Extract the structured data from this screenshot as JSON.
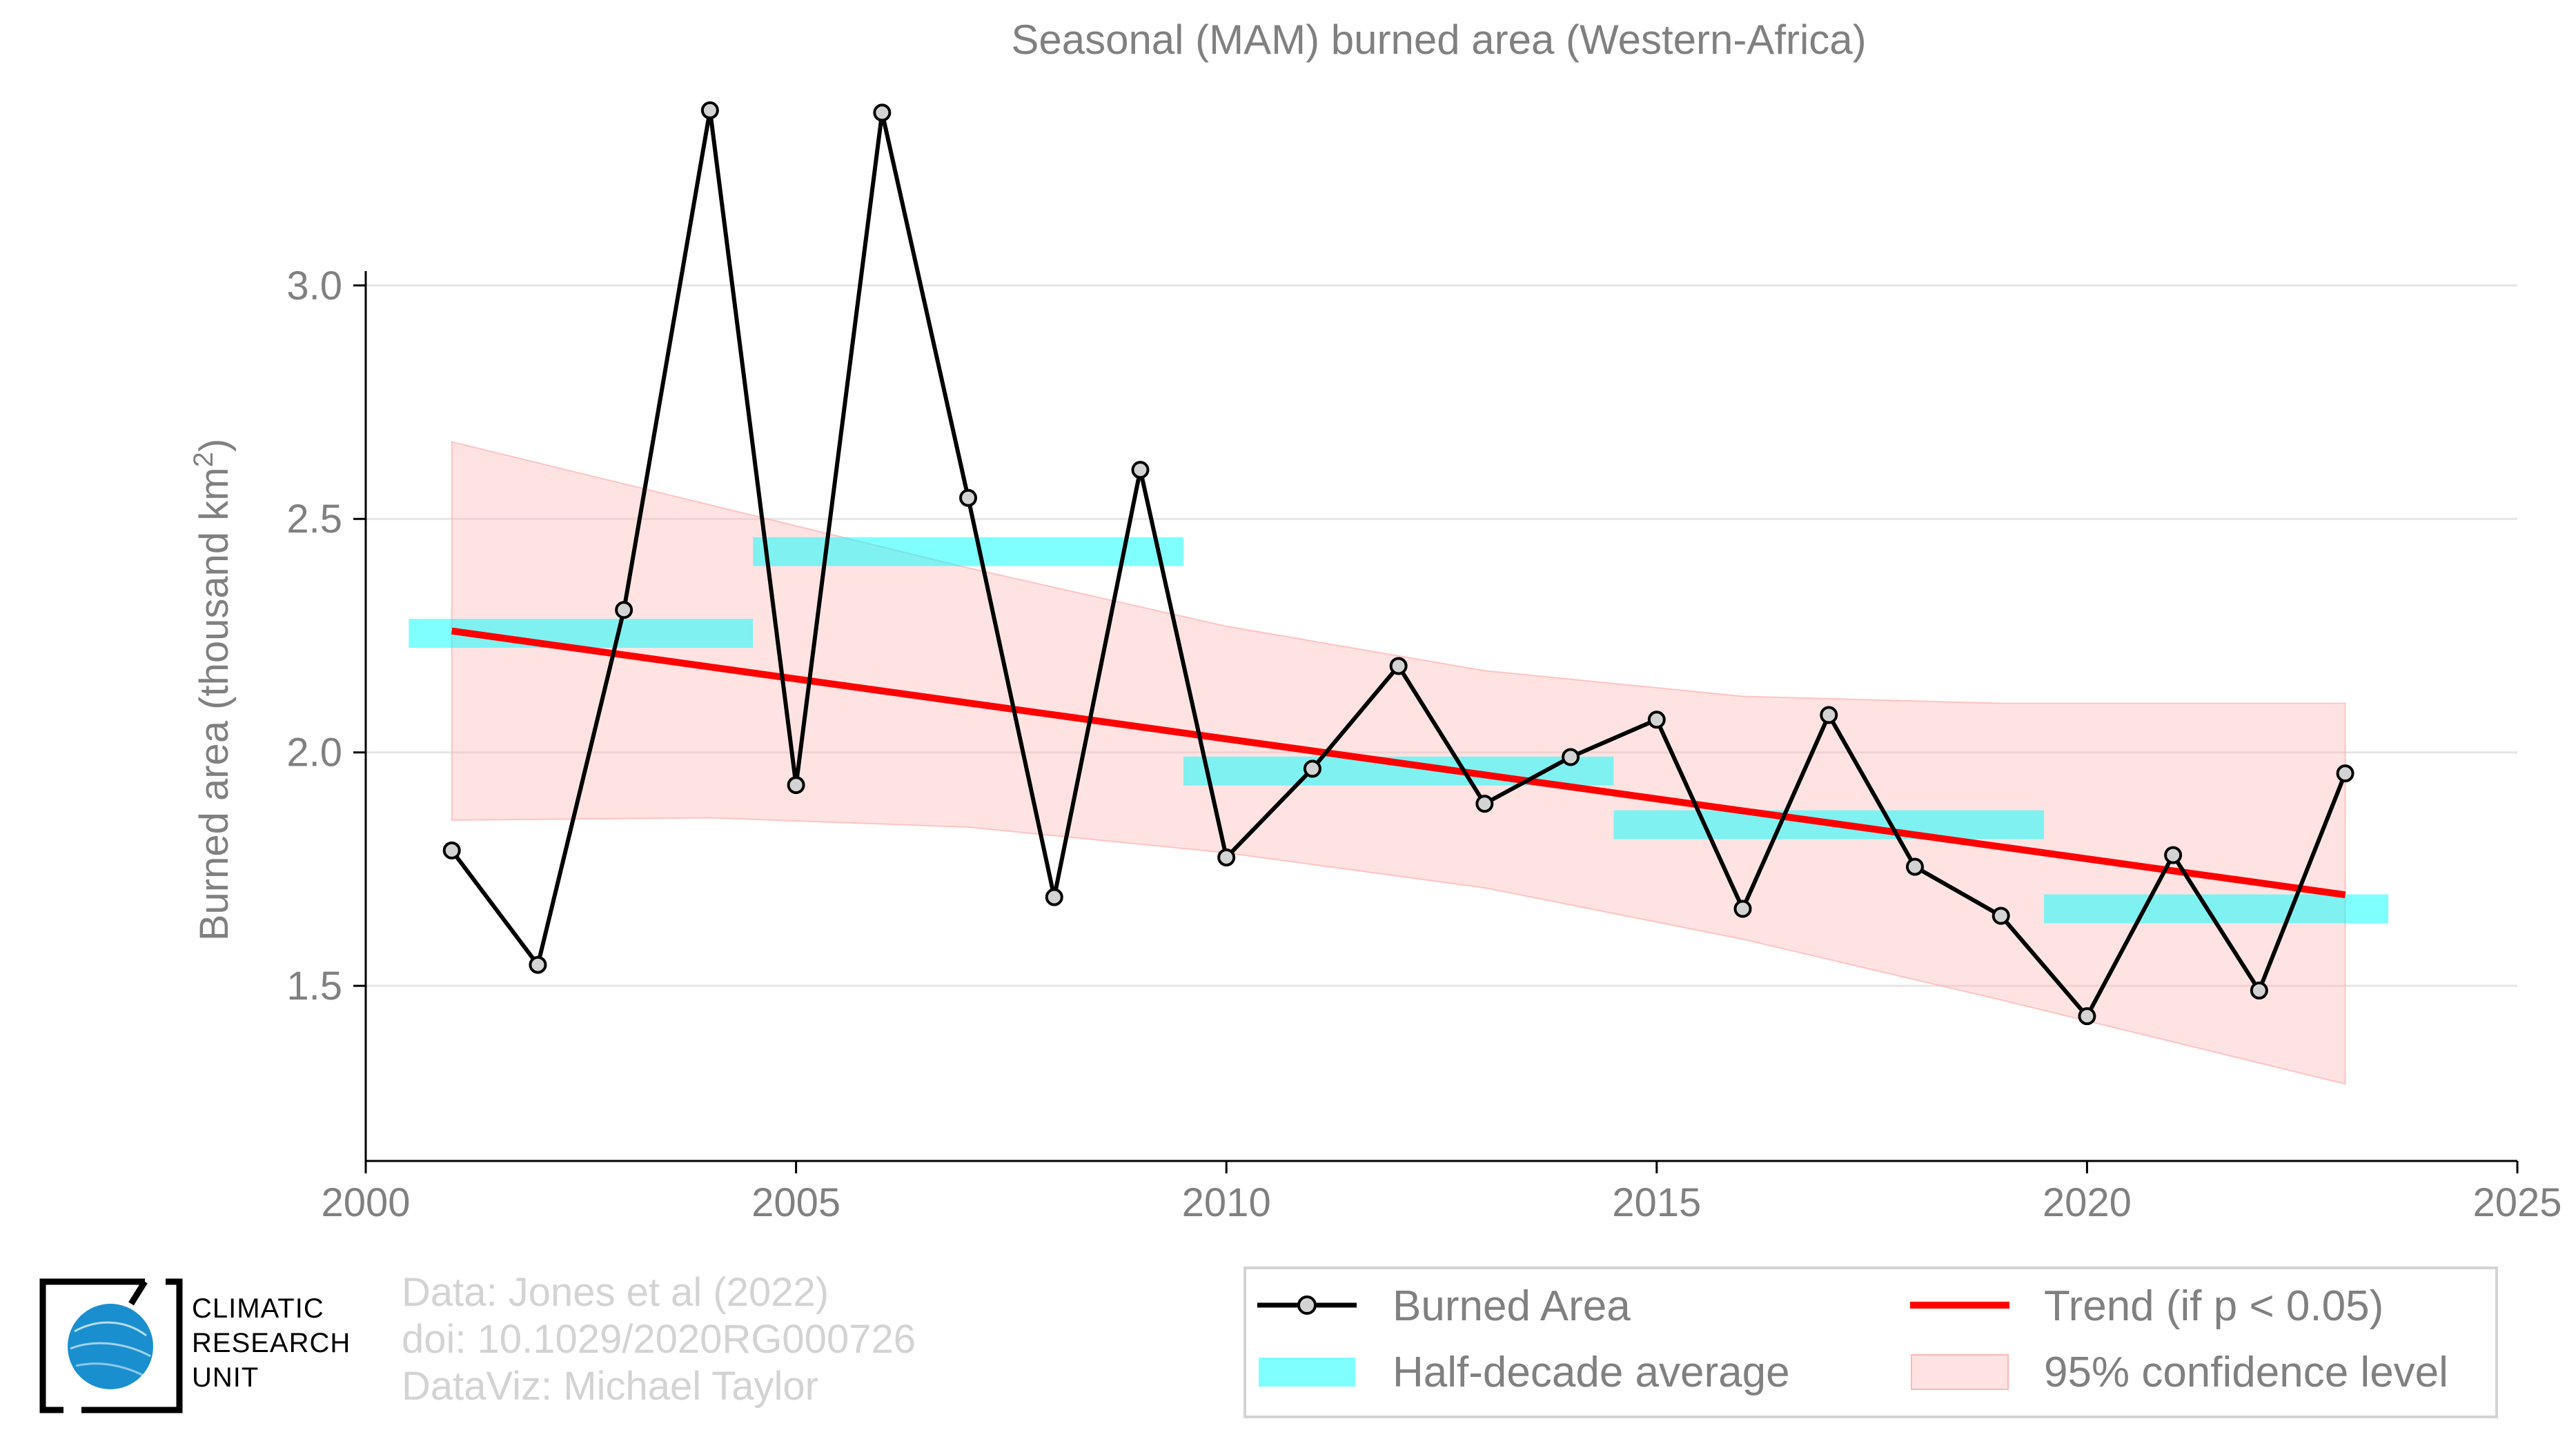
{
  "chart_data": {
    "type": "line",
    "title": "Seasonal (MAM) burned area (Western-Africa)",
    "ylabel": "Burned area (thousand km",
    "ylabel_sup": "2",
    "ylabel_end": ")",
    "xlim": [
      2000,
      2025
    ],
    "ylim": [
      1.125,
      3.4
    ],
    "x_ticks": [
      2000,
      2005,
      2010,
      2015,
      2020,
      2025
    ],
    "y_ticks": [
      1.5,
      2.0,
      2.5,
      3.0
    ],
    "y_tick_labels": [
      "1.5",
      "2.0",
      "2.5",
      "3.0"
    ],
    "grid": true,
    "legend_position": "bottom-right",
    "series": [
      {
        "name": "Burned Area",
        "x": [
          2001,
          2002,
          2003,
          2004,
          2005,
          2006,
          2007,
          2008,
          2009,
          2010,
          2011,
          2012,
          2013,
          2014,
          2015,
          2016,
          2017,
          2018,
          2019,
          2020,
          2021,
          2022,
          2023
        ],
        "values": [
          1.79,
          1.545,
          2.305,
          3.375,
          1.93,
          3.37,
          2.545,
          1.69,
          2.605,
          1.775,
          1.965,
          2.185,
          1.89,
          1.99,
          2.07,
          1.665,
          2.08,
          1.755,
          1.65,
          1.435,
          1.78,
          1.49,
          1.955
        ],
        "color": "#000000",
        "marker_color": "#d3d3d3"
      },
      {
        "name": "Half-decade average",
        "segments": [
          {
            "x0": 2000.5,
            "x1": 2004.5,
            "value": 2.255
          },
          {
            "x0": 2004.5,
            "x1": 2009.5,
            "value": 2.43
          },
          {
            "x0": 2009.5,
            "x1": 2014.5,
            "value": 1.96
          },
          {
            "x0": 2014.5,
            "x1": 2019.5,
            "value": 1.845
          },
          {
            "x0": 2019.5,
            "x1": 2023.5,
            "value": 1.665
          }
        ],
        "color": "#00ffff"
      },
      {
        "name": "Trend (if p < 0.05)",
        "x": [
          2001,
          2023
        ],
        "values": [
          2.26,
          1.695
        ],
        "color": "#ff0000"
      },
      {
        "name": "95% confidence level",
        "x": [
          2001,
          2004,
          2007,
          2010,
          2013,
          2016,
          2019,
          2023
        ],
        "upper": [
          2.665,
          2.53,
          2.395,
          2.27,
          2.175,
          2.12,
          2.105,
          2.105
        ],
        "lower": [
          1.855,
          1.86,
          1.84,
          1.785,
          1.71,
          1.6,
          1.47,
          1.29
        ],
        "color": "#ffb6b6"
      }
    ]
  },
  "legend": {
    "burned_area": "Burned Area",
    "half_decade": "Half-decade average",
    "trend": "Trend (if p < 0.05)",
    "confidence": "95% confidence level"
  },
  "credits": {
    "line1": "Data: Jones et al (2022)",
    "line2": "doi: 10.1029/2020RG000726",
    "line3": "DataViz: Michael Taylor"
  },
  "logo": {
    "line1": "CLIMATIC",
    "line2": "RESEARCH",
    "line3": "UNIT"
  },
  "colors": {
    "text_gray": "#808080",
    "credit_gray": "#d3d3d3",
    "logo_blue": "#1a8fd0"
  }
}
